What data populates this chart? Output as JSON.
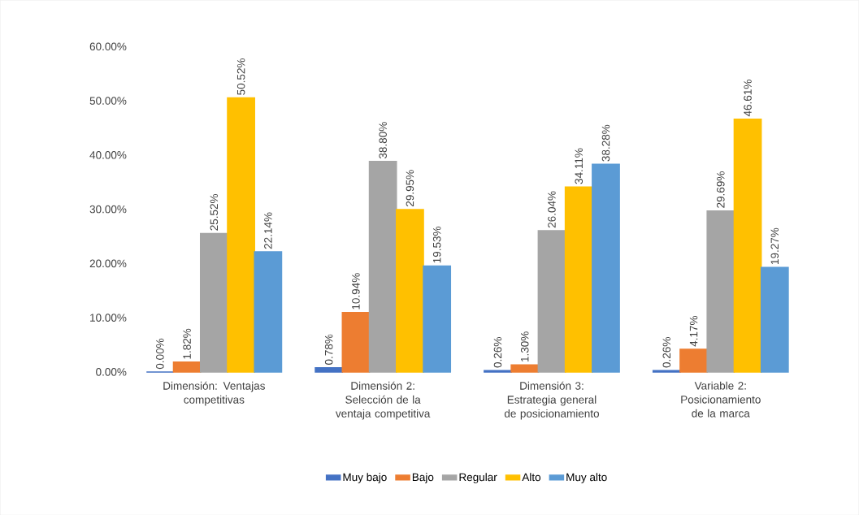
{
  "chart_data": {
    "type": "bar",
    "categories": [
      "Dimensión: Ventajas competitivas",
      "Dimensión 2: Selección de la ventaja competitiva",
      "Dimensión 3: Estrategia general de posicionamiento",
      "Variable 2: Posicionamiento de la marca"
    ],
    "series": [
      {
        "name": "Muy bajo",
        "color": "#4472c4",
        "values": [
          0.0,
          0.78,
          0.26,
          0.26
        ],
        "value_labels": [
          "0.00%",
          "0.78%",
          "0.26%",
          "0.26%"
        ]
      },
      {
        "name": "Bajo",
        "color": "#ed7d31",
        "values": [
          1.82,
          10.94,
          1.3,
          4.17
        ],
        "value_labels": [
          "1.82%",
          "10.94%",
          "1.30%",
          "4.17%"
        ]
      },
      {
        "name": "Regular",
        "color": "#a5a5a5",
        "values": [
          25.52,
          38.8,
          26.04,
          29.69
        ],
        "value_labels": [
          "25.52%",
          "38.80%",
          "26.04%",
          "29.69%"
        ]
      },
      {
        "name": "Alto",
        "color": "#ffc000",
        "values": [
          50.52,
          29.95,
          34.11,
          46.61
        ],
        "value_labels": [
          "50.52%",
          "29.95%",
          "34.11%",
          "46.61%"
        ]
      },
      {
        "name": "Muy alto",
        "color": "#5b9bd5",
        "values": [
          22.14,
          19.53,
          38.28,
          19.27
        ],
        "value_labels": [
          "22.14%",
          "19.53%",
          "38.28%",
          "19.27%"
        ]
      }
    ],
    "ylim": [
      0,
      60
    ],
    "yticks": [
      {
        "value": 0,
        "label": "0.00%"
      },
      {
        "value": 10,
        "label": "10.00%"
      },
      {
        "value": 20,
        "label": "20.00%"
      },
      {
        "value": 30,
        "label": "30.00%"
      },
      {
        "value": 40,
        "label": "40.00%"
      },
      {
        "value": 50,
        "label": "50.00%"
      },
      {
        "value": 60,
        "label": "60.00%"
      }
    ],
    "grid": false,
    "legend": "bottom"
  }
}
